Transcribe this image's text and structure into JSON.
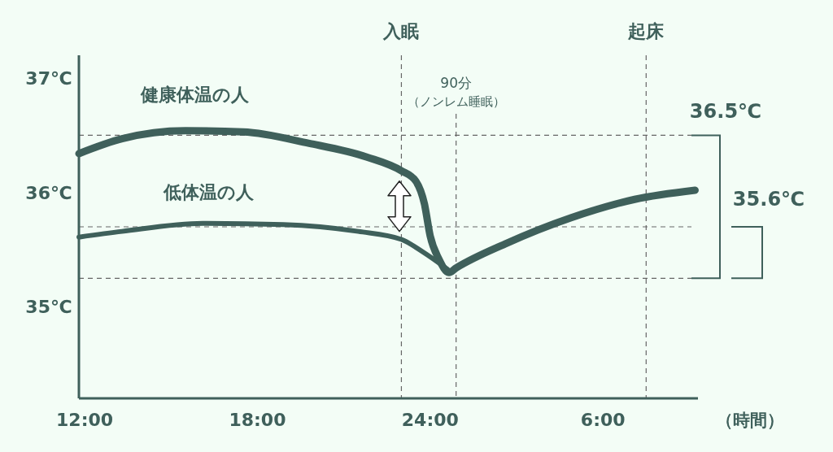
{
  "chart_data": {
    "type": "line",
    "xlabel": "（時間）",
    "xlim": [
      "2000-01-01T11:48",
      "2000-01-02T09:18"
    ],
    "xticks": [
      {
        "value": "2000-01-01T12:00",
        "label": "12:00"
      },
      {
        "value": "2000-01-01T18:00",
        "label": "18:00"
      },
      {
        "value": "2000-01-02T00:00",
        "label": "24:00"
      },
      {
        "value": "2000-01-02T06:00",
        "label": "6:00"
      }
    ],
    "ylim": [
      34.2,
      37.2
    ],
    "yticks": [
      {
        "value": 35,
        "label": "35℃"
      },
      {
        "value": 36,
        "label": "36℃"
      },
      {
        "value": 37,
        "label": "37℃"
      }
    ],
    "series": [
      {
        "name": "健康体温の人",
        "color": "#3f605b",
        "x": [
          "2000-01-01T11:48",
          "2000-01-01T13:18",
          "2000-01-01T15:30",
          "2000-01-01T17:30",
          "2000-01-01T19:48",
          "2000-01-01T21:48",
          "2000-01-01T23:00",
          "2000-01-01T23:30",
          "2000-01-01T23:48",
          "2000-01-02T00:00",
          "2000-01-02T00:18",
          "2000-01-02T00:39",
          "2000-01-02T00:54",
          "2000-01-02T02:36",
          "2000-01-02T04:54",
          "2000-01-02T07:06",
          "2000-01-02T09:12"
        ],
        "values": [
          36.34,
          36.47,
          36.54,
          36.53,
          36.43,
          36.31,
          36.19,
          36.1,
          35.9,
          35.62,
          35.42,
          35.3,
          35.34,
          35.55,
          35.78,
          35.94,
          36.02
        ]
      },
      {
        "name": "低体温の人",
        "color": "#3f605b",
        "x": [
          "2000-01-01T11:48",
          "2000-01-01T13:18",
          "2000-01-01T16:06",
          "2000-01-01T18:54",
          "2000-01-01T21:30",
          "2000-01-01T23:00",
          "2000-01-01T23:45",
          "2000-01-02T00:36"
        ],
        "values": [
          35.61,
          35.66,
          35.73,
          35.72,
          35.66,
          35.59,
          35.48,
          35.33
        ]
      }
    ],
    "ref_lines": [
      {
        "axis": "x",
        "value": "2000-01-01T23:00",
        "label": "入眠",
        "line_style": "dashed"
      },
      {
        "axis": "x",
        "value": "2000-01-02T00:54",
        "label": "90分（ノンレム睡眠）",
        "line_style": "dashed"
      },
      {
        "axis": "x",
        "value": "2000-01-02T07:30",
        "label": "起床",
        "line_style": "dashed"
      },
      {
        "axis": "y",
        "value": 36.5,
        "label": "36.5℃",
        "line_style": "dashed"
      },
      {
        "axis": "y",
        "value": 35.7,
        "line_style": "dashed"
      },
      {
        "axis": "y",
        "value": 35.25,
        "line_style": "dashed"
      }
    ],
    "annotations": [
      "35.6℃"
    ],
    "grid": false,
    "marker": "none",
    "line_style": "solid"
  }
}
